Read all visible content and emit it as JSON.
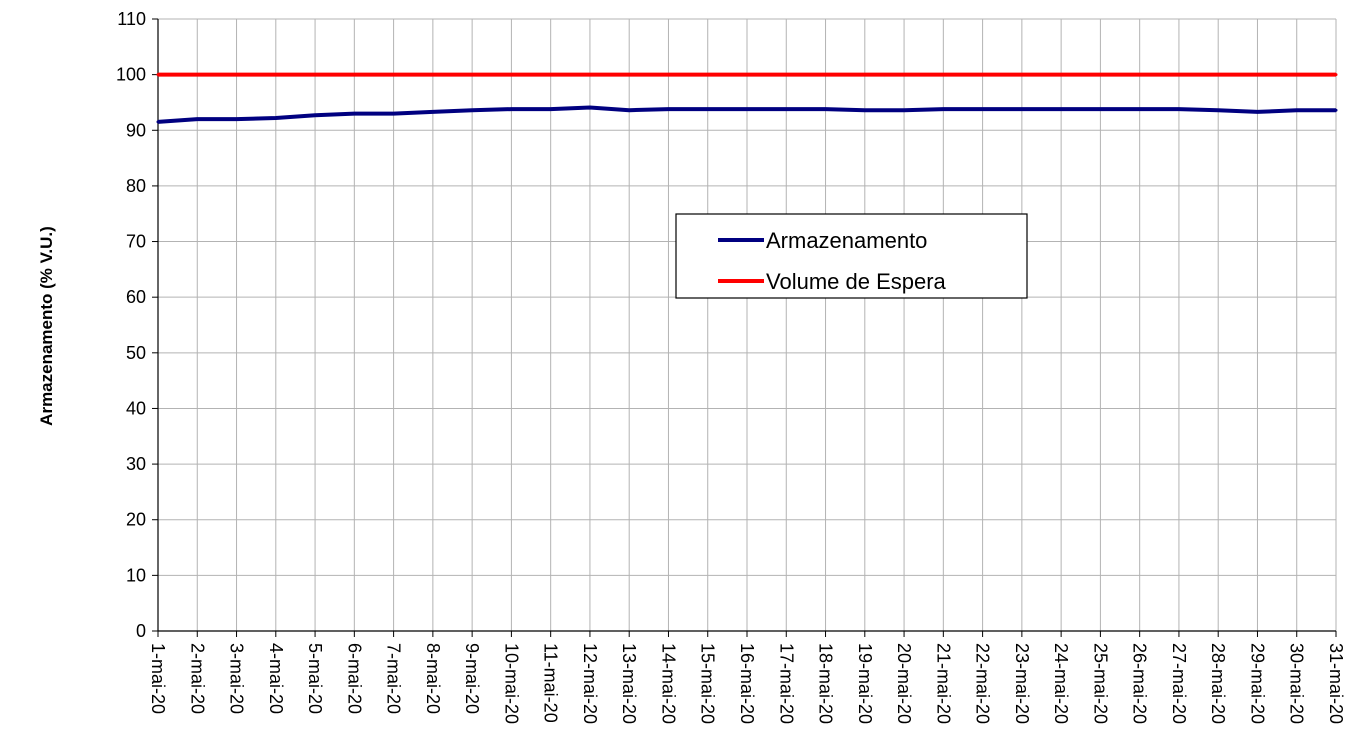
{
  "chart_data": {
    "type": "line",
    "title": "",
    "xlabel": "",
    "ylabel": "Armazenamento (% V.U.)",
    "ylim": [
      0,
      110
    ],
    "y_ticks": [
      0,
      10,
      20,
      30,
      40,
      50,
      60,
      70,
      80,
      90,
      100,
      110
    ],
    "categories": [
      "1-mai-20",
      "2-mai-20",
      "3-mai-20",
      "4-mai-20",
      "5-mai-20",
      "6-mai-20",
      "7-mai-20",
      "8-mai-20",
      "9-mai-20",
      "10-mai-20",
      "11-mai-20",
      "12-mai-20",
      "13-mai-20",
      "14-mai-20",
      "15-mai-20",
      "16-mai-20",
      "17-mai-20",
      "18-mai-20",
      "19-mai-20",
      "20-mai-20",
      "21-mai-20",
      "22-mai-20",
      "23-mai-20",
      "24-mai-20",
      "25-mai-20",
      "26-mai-20",
      "27-mai-20",
      "28-mai-20",
      "29-mai-20",
      "30-mai-20",
      "31-mai-20"
    ],
    "series": [
      {
        "name": "Armazenamento",
        "color": "#000080",
        "values": [
          91.5,
          92.0,
          92.0,
          92.2,
          92.7,
          93.0,
          93.0,
          93.3,
          93.6,
          93.8,
          93.8,
          94.1,
          93.6,
          93.8,
          93.8,
          93.8,
          93.8,
          93.8,
          93.6,
          93.6,
          93.8,
          93.8,
          93.8,
          93.8,
          93.8,
          93.8,
          93.8,
          93.6,
          93.3,
          93.6,
          93.6
        ]
      },
      {
        "name": "Volume de Espera",
        "color": "#ff0000",
        "values": [
          100,
          100,
          100,
          100,
          100,
          100,
          100,
          100,
          100,
          100,
          100,
          100,
          100,
          100,
          100,
          100,
          100,
          100,
          100,
          100,
          100,
          100,
          100,
          100,
          100,
          100,
          100,
          100,
          100,
          100,
          100
        ]
      }
    ],
    "grid": true,
    "legend_position": "center-right"
  }
}
